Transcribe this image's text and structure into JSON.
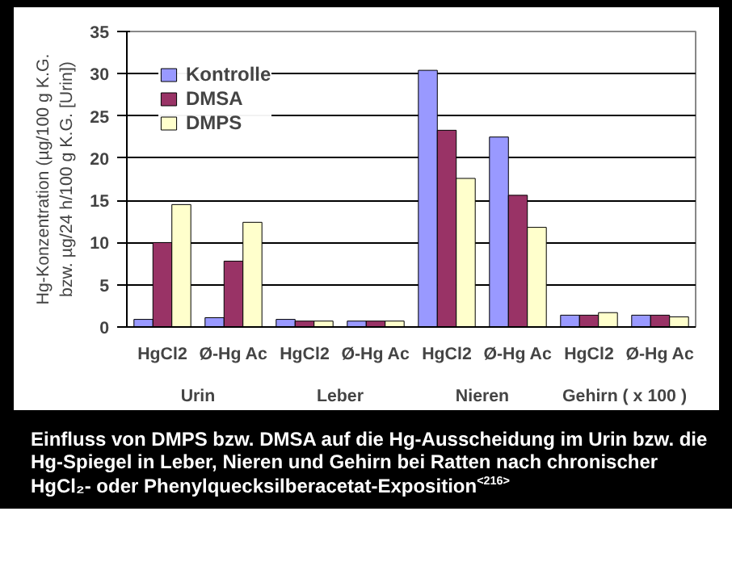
{
  "chart_data": {
    "type": "bar",
    "title": "Einfluss von DMPS bzw. DMSA auf die Hg-Ausscheidung im Urin bzw. die Hg-Spiegel in Leber, Nieren und Gehirn bei Ratten nach chronischer HgCl₂- oder Phenylquecksilberacetat-Exposition$^{<216>}$",
    "ylabel": "Hg-Konzentration (µg/100 g K.G. bzw. µg/24 h/100 g K.G. [Urin])",
    "categories": [
      "HgCl2",
      "Ø-Hg Ac",
      "HgCl2",
      "Ø-Hg Ac",
      "HgCl2",
      "Ø-Hg Ac",
      "HgCl2",
      "Ø-Hg Ac"
    ],
    "annotations": [
      "Urin",
      "Leber",
      "Nieren",
      "Gehirn ( x 100 )"
    ],
    "series": [
      {
        "name": "Kontrolle",
        "color": "#9999ff",
        "values": [
          0.9,
          1.1,
          0.9,
          0.7,
          30.4,
          22.5,
          1.4,
          1.4
        ]
      },
      {
        "name": "DMSA",
        "color": "#993366",
        "values": [
          10,
          7.8,
          0.7,
          0.7,
          23.3,
          15.6,
          1.4,
          1.4
        ]
      },
      {
        "name": "DMPS",
        "color": "#ffffcc",
        "values": [
          14.5,
          12.4,
          0.7,
          0.7,
          17.6,
          11.8,
          1.7,
          1.2
        ]
      }
    ],
    "ylim": [
      0,
      35
    ],
    "yticks": [
      0,
      5,
      10,
      15,
      20,
      25,
      30,
      35
    ],
    "grid": "y",
    "legend": "top left"
  }
}
